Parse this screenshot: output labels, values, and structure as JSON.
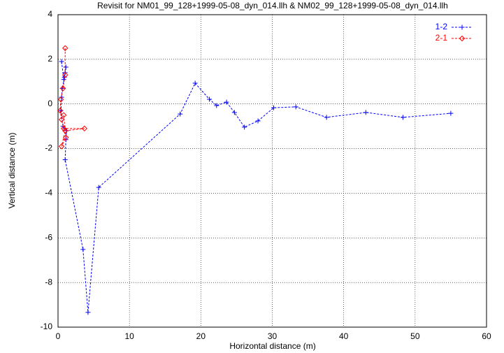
{
  "chart_data": {
    "type": "line",
    "title": "Revisit for NM01_99_128+1999-05-08_dyn_014.llh & NM02_99_128+1999-05-08_dyn_014.llh",
    "x_label": "Horizontal distance (m)",
    "y_label": "Vertical distance (m)",
    "xlim": [
      0,
      60
    ],
    "xticks": [
      0,
      10,
      20,
      30,
      40,
      50,
      60
    ],
    "ylim": [
      -10,
      4
    ],
    "yticks": [
      -10,
      -8,
      -6,
      -4,
      -2,
      0,
      2,
      4
    ],
    "grid": true,
    "legend": "top-right",
    "series": [
      {
        "name": "1-2",
        "color": "#0000ff",
        "marker": "plus",
        "x": [
          0.5,
          0.8,
          1.1,
          1.0,
          0.9,
          0.6,
          0.5,
          0.4,
          0.7,
          1.2,
          1.1,
          1.0,
          3.5,
          4.2,
          5.7,
          17.1,
          19.2,
          21.2,
          22.2,
          23.6,
          24.7,
          26.1,
          28.0,
          30.2,
          33.3,
          37.6,
          43.1,
          48.3,
          55.0
        ],
        "values": [
          1.9,
          1.1,
          1.65,
          1.4,
          1.2,
          0.7,
          0.3,
          -0.3,
          -1.0,
          -1.2,
          -1.6,
          -2.5,
          -6.52,
          -9.34,
          -3.74,
          -0.45,
          0.93,
          0.21,
          -0.07,
          0.08,
          -0.38,
          -1.04,
          -0.76,
          -0.17,
          -0.13,
          -0.6,
          -0.38,
          -0.6,
          -0.42
        ]
      },
      {
        "name": "2-1",
        "color": "#ff0000",
        "marker": "diamond",
        "x": [
          1.0,
          1.0,
          0.7,
          0.4,
          0.3,
          0.5,
          0.8,
          3.7,
          1.0,
          0.5,
          1.1,
          0.8
        ],
        "values": [
          2.5,
          1.3,
          0.7,
          0.2,
          -0.3,
          -0.7,
          -1.1,
          -1.1,
          -1.2,
          -1.9,
          -1.5,
          -0.5
        ]
      }
    ]
  }
}
